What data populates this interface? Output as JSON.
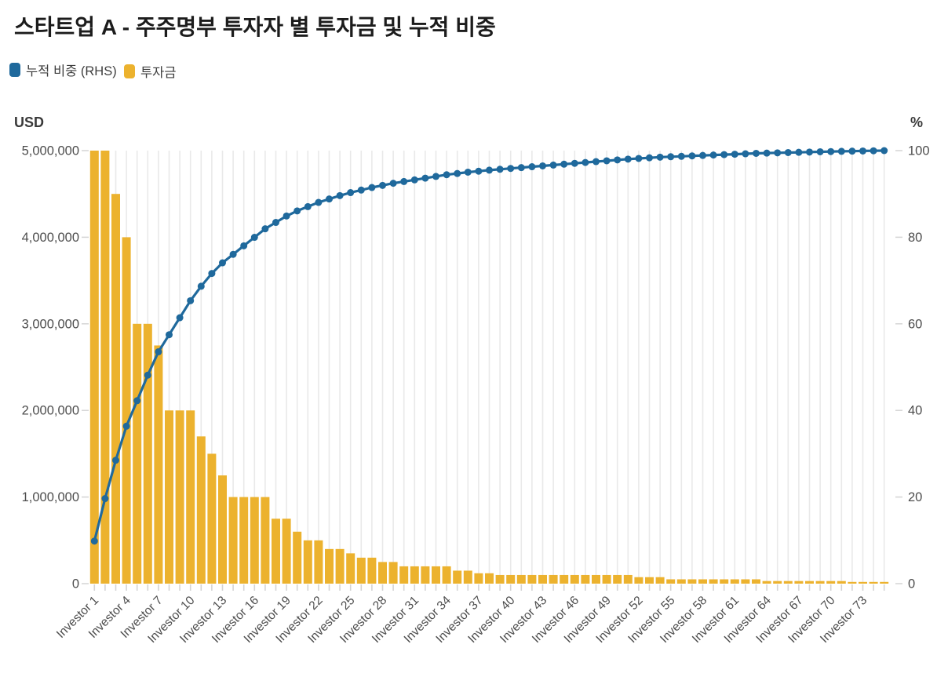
{
  "title": "스타트업 A - 주주명부 투자자 별 투자금 및 누적 비중",
  "legend": {
    "items": [
      {
        "label": "누적 비중 (RHS)",
        "color": "#1f699c",
        "series": "cumulative_share"
      },
      {
        "label": "투자금",
        "color": "#ecb22e",
        "series": "investment"
      }
    ]
  },
  "axes": {
    "left_title": "USD",
    "right_title": "%",
    "left_tick_labels": [
      "0",
      "1,000,000",
      "2,000,000",
      "3,000,000",
      "4,000,000",
      "5,000,000"
    ],
    "right_tick_labels": [
      "0",
      "20",
      "40",
      "60",
      "80",
      "100"
    ],
    "x_tick_labels": [
      "Investor 1",
      "Investor 4",
      "Investor 7",
      "Investor 10",
      "Investor 13",
      "Investor 16",
      "Investor 19",
      "Investor 22",
      "Investor 25",
      "Investor 28",
      "Investor 31",
      "Investor 34",
      "Investor 37",
      "Investor 40",
      "Investor 43",
      "Investor 46",
      "Investor 49",
      "Investor 52",
      "Investor 55",
      "Investor 58",
      "Investor 61",
      "Investor 64",
      "Investor 67",
      "Investor 70",
      "Investor 73"
    ]
  },
  "chart_data": {
    "type": "bar",
    "subtype": "pareto-bar-line-combo",
    "category_prefix": "Investor ",
    "category_start": 1,
    "category_count": 75,
    "x_tick_every": 3,
    "grid": "vertical-only",
    "legend_position": "top-left",
    "left_ylim": [
      0,
      5000000
    ],
    "right_ylim": [
      0,
      100
    ],
    "series": [
      {
        "name": "투자금",
        "type": "bar",
        "axis": "left",
        "unit": "USD",
        "color": "#ecb22e",
        "values": [
          5000000,
          5000000,
          4500000,
          4000000,
          3000000,
          3000000,
          2750000,
          2000000,
          2000000,
          2000000,
          1700000,
          1500000,
          1250000,
          1000000,
          1000000,
          1000000,
          1000000,
          750000,
          750000,
          600000,
          500000,
          500000,
          400000,
          400000,
          350000,
          300000,
          300000,
          250000,
          250000,
          200000,
          200000,
          200000,
          200000,
          200000,
          150000,
          150000,
          120000,
          120000,
          100000,
          100000,
          100000,
          100000,
          100000,
          100000,
          100000,
          100000,
          100000,
          100000,
          100000,
          100000,
          100000,
          75000,
          75000,
          75000,
          50000,
          50000,
          50000,
          50000,
          50000,
          50000,
          50000,
          50000,
          50000,
          30000,
          30000,
          30000,
          30000,
          30000,
          30000,
          30000,
          30000,
          20000,
          20000,
          20000,
          20000
        ]
      },
      {
        "name": "누적 비중 (RHS)",
        "type": "line",
        "axis": "right",
        "unit": "%",
        "color": "#1f699c",
        "values": [
          9.83,
          19.65,
          28.5,
          36.36,
          42.25,
          48.15,
          53.55,
          57.48,
          61.41,
          65.34,
          68.68,
          71.63,
          74.09,
          76.05,
          78.02,
          79.98,
          81.95,
          83.42,
          84.9,
          86.08,
          87.06,
          88.04,
          88.83,
          89.61,
          90.3,
          90.89,
          91.48,
          91.97,
          92.46,
          92.86,
          93.25,
          93.64,
          94.04,
          94.43,
          94.72,
          95.02,
          95.25,
          95.49,
          95.69,
          95.88,
          96.08,
          96.28,
          96.47,
          96.67,
          96.87,
          97.06,
          97.26,
          97.46,
          97.65,
          97.85,
          98.04,
          98.19,
          98.34,
          98.49,
          98.59,
          98.68,
          98.78,
          98.88,
          98.98,
          99.08,
          99.17,
          99.27,
          99.37,
          99.43,
          99.49,
          99.55,
          99.61,
          99.67,
          99.73,
          99.78,
          99.84,
          99.88,
          99.92,
          99.96,
          100.0
        ]
      }
    ]
  }
}
